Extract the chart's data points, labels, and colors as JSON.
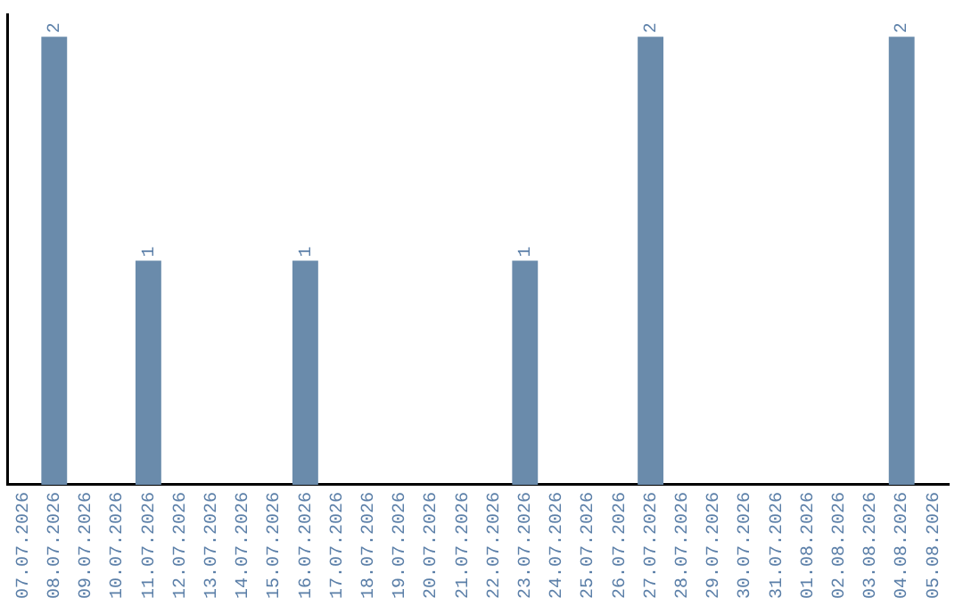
{
  "chart_data": {
    "type": "bar",
    "categories": [
      "07.07.2026",
      "08.07.2026",
      "09.07.2026",
      "10.07.2026",
      "11.07.2026",
      "12.07.2026",
      "13.07.2026",
      "14.07.2026",
      "15.07.2026",
      "16.07.2026",
      "17.07.2026",
      "18.07.2026",
      "19.07.2026",
      "20.07.2026",
      "21.07.2026",
      "22.07.2026",
      "23.07.2026",
      "24.07.2026",
      "25.07.2026",
      "26.07.2026",
      "27.07.2026",
      "28.07.2026",
      "29.07.2026",
      "30.07.2026",
      "31.07.2026",
      "01.08.2026",
      "02.08.2026",
      "03.08.2026",
      "04.08.2026",
      "05.08.2026"
    ],
    "values": [
      0,
      2,
      0,
      0,
      1,
      0,
      0,
      0,
      0,
      1,
      0,
      0,
      0,
      0,
      0,
      0,
      1,
      0,
      0,
      0,
      2,
      0,
      0,
      0,
      0,
      0,
      0,
      0,
      2,
      0
    ],
    "value_labels": [
      null,
      "2",
      null,
      null,
      "1",
      null,
      null,
      null,
      null,
      "1",
      null,
      null,
      null,
      null,
      null,
      null,
      "1",
      null,
      null,
      null,
      "2",
      null,
      null,
      null,
      null,
      null,
      null,
      null,
      "2",
      null
    ],
    "color": "#6a8bab",
    "tick_labels": "x",
    "grid": false,
    "legend": false
  }
}
